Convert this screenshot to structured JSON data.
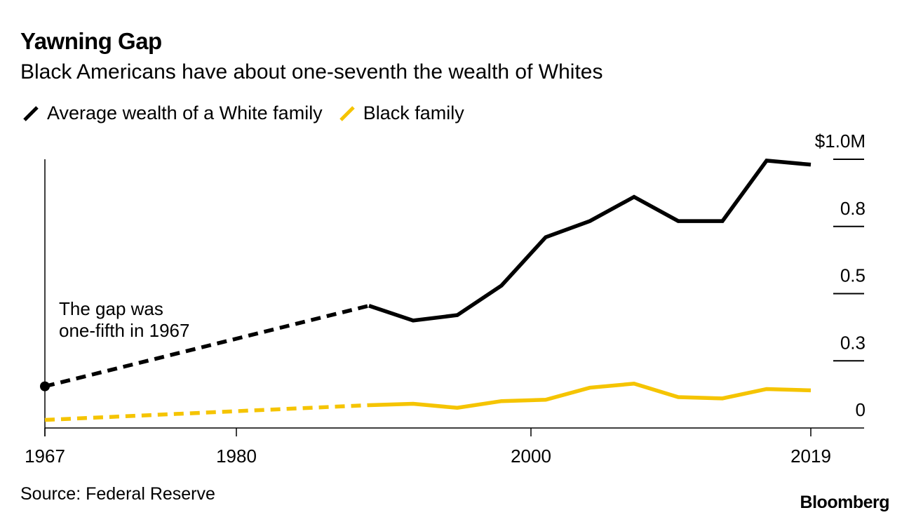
{
  "header": {
    "title": "Yawning Gap",
    "subtitle": "Black Americans have about one-seventh the wealth of Whites"
  },
  "legend": {
    "white_label": "Average wealth of a White family",
    "black_label": "Black family"
  },
  "colors": {
    "white_series": "#000000",
    "black_series": "#f5c400"
  },
  "annotation": {
    "line1": "The gap was",
    "line2": "one-fifth in 1967"
  },
  "footer": {
    "source": "Source: Federal Reserve",
    "brand": "Bloomberg"
  },
  "chart_data": {
    "type": "line",
    "title": "Yawning Gap",
    "subtitle": "Black Americans have about one-seventh the wealth of Whites",
    "xlabel": "",
    "ylabel": "",
    "xlim": [
      1967,
      2021
    ],
    "ylim": [
      0,
      1.0
    ],
    "x_ticks": [
      1967,
      1980,
      2000,
      2019
    ],
    "x_tick_labels": [
      "1967",
      "1980",
      "2000",
      "2019"
    ],
    "y_ticks": [
      0,
      0.25,
      0.5,
      0.75,
      1.0
    ],
    "y_tick_labels": [
      "0",
      "0.3",
      "0.5",
      "0.8",
      "$1.0M"
    ],
    "y_axis_side": "right",
    "series": [
      {
        "name": "Average wealth of a White family",
        "segments": [
          {
            "style": "dashed",
            "x": [
              1967,
              1989
            ],
            "y": [
              0.155,
              0.455
            ]
          },
          {
            "style": "solid",
            "x": [
              1989,
              1992,
              1995,
              1998,
              2001,
              2004,
              2007,
              2010,
              2013,
              2016,
              2019
            ],
            "y": [
              0.455,
              0.4,
              0.42,
              0.53,
              0.71,
              0.77,
              0.86,
              0.77,
              0.77,
              0.995,
              0.98
            ]
          }
        ]
      },
      {
        "name": "Black family",
        "segments": [
          {
            "style": "dashed",
            "x": [
              1967,
              1989
            ],
            "y": [
              0.03,
              0.085
            ]
          },
          {
            "style": "solid",
            "x": [
              1989,
              1992,
              1995,
              1998,
              2001,
              2004,
              2007,
              2010,
              2013,
              2016,
              2019
            ],
            "y": [
              0.085,
              0.09,
              0.075,
              0.1,
              0.105,
              0.15,
              0.165,
              0.115,
              0.11,
              0.145,
              0.14
            ]
          }
        ]
      }
    ],
    "markers": [
      {
        "series": "Average wealth of a White family",
        "x": 1967,
        "y": 0.155
      }
    ]
  }
}
